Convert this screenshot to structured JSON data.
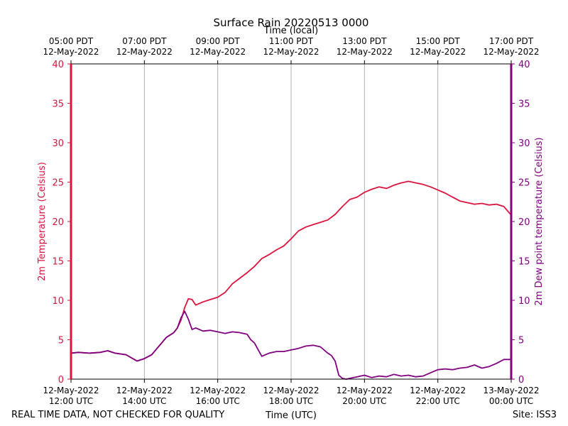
{
  "chart_data": {
    "type": "line",
    "title": "Surface Rain 20220513 0000",
    "xlabel_bottom": "Time (UTC)",
    "xlabel_top": "Time (local)",
    "ylabel_left": "2m Temperature (Celsius)",
    "ylabel_right": "2m Dew point temperature (Celsius)",
    "xlim_hours": [
      12,
      24
    ],
    "ylim": [
      0,
      40
    ],
    "yticks": [
      0,
      5,
      10,
      15,
      20,
      25,
      30,
      35,
      40
    ],
    "grid_vertical": true,
    "x_ticks": [
      {
        "hour": 12,
        "utc_date": "12-May-2022",
        "utc_time": "12:00 UTC",
        "local_time": "05:00 PDT",
        "local_date": "12-May-2022"
      },
      {
        "hour": 14,
        "utc_date": "12-May-2022",
        "utc_time": "14:00 UTC",
        "local_time": "07:00 PDT",
        "local_date": "12-May-2022"
      },
      {
        "hour": 16,
        "utc_date": "12-May-2022",
        "utc_time": "16:00 UTC",
        "local_time": "09:00 PDT",
        "local_date": "12-May-2022"
      },
      {
        "hour": 18,
        "utc_date": "12-May-2022",
        "utc_time": "18:00 UTC",
        "local_time": "11:00 PDT",
        "local_date": "12-May-2022"
      },
      {
        "hour": 20,
        "utc_date": "12-May-2022",
        "utc_time": "20:00 UTC",
        "local_time": "13:00 PDT",
        "local_date": "12-May-2022"
      },
      {
        "hour": 22,
        "utc_date": "12-May-2022",
        "utc_time": "22:00 UTC",
        "local_time": "15:00 PDT",
        "local_date": "12-May-2022"
      },
      {
        "hour": 24,
        "utc_date": "13-May-2022",
        "utc_time": "00:00 UTC",
        "local_time": "17:00 PDT",
        "local_date": "12-May-2022"
      }
    ],
    "series": [
      {
        "name": "2m Temperature",
        "color": "#dc143c",
        "x": [
          12.0,
          12.2,
          12.5,
          12.8,
          13.0,
          13.2,
          13.5,
          13.8,
          14.0,
          14.2,
          14.4,
          14.6,
          14.8,
          14.9,
          15.0,
          15.1,
          15.2,
          15.3,
          15.4,
          15.6,
          15.8,
          16.0,
          16.2,
          16.4,
          16.6,
          16.8,
          17.0,
          17.2,
          17.4,
          17.6,
          17.8,
          18.0,
          18.2,
          18.4,
          18.6,
          18.8,
          19.0,
          19.2,
          19.4,
          19.6,
          19.8,
          20.0,
          20.2,
          20.4,
          20.6,
          20.8,
          21.0,
          21.2,
          21.4,
          21.6,
          21.8,
          22.0,
          22.2,
          22.4,
          22.6,
          22.8,
          23.0,
          23.2,
          23.4,
          23.6,
          23.8,
          24.0
        ],
        "values": [
          3.3,
          3.4,
          3.3,
          3.4,
          3.6,
          3.3,
          3.1,
          2.3,
          2.6,
          3.1,
          4.2,
          5.3,
          5.9,
          6.5,
          7.5,
          9.1,
          10.2,
          10.1,
          9.4,
          9.8,
          10.1,
          10.4,
          11.0,
          12.1,
          12.8,
          13.5,
          14.3,
          15.3,
          15.8,
          16.4,
          16.9,
          17.8,
          18.8,
          19.3,
          19.6,
          19.9,
          20.2,
          20.9,
          21.9,
          22.8,
          23.1,
          23.7,
          24.1,
          24.4,
          24.2,
          24.6,
          24.9,
          25.1,
          24.9,
          24.7,
          24.4,
          24.0,
          23.6,
          23.1,
          22.6,
          22.4,
          22.2,
          22.3,
          22.1,
          22.2,
          21.9,
          20.8
        ]
      },
      {
        "name": "2m Dew point temperature",
        "color": "#800080",
        "x": [
          12.0,
          12.2,
          12.5,
          12.8,
          13.0,
          13.2,
          13.5,
          13.8,
          14.0,
          14.2,
          14.4,
          14.6,
          14.8,
          14.9,
          15.0,
          15.1,
          15.2,
          15.3,
          15.4,
          15.6,
          15.8,
          16.0,
          16.2,
          16.4,
          16.6,
          16.8,
          16.9,
          17.0,
          17.2,
          17.4,
          17.6,
          17.8,
          18.0,
          18.2,
          18.4,
          18.6,
          18.8,
          19.0,
          19.1,
          19.2,
          19.3,
          19.4,
          19.5,
          19.6,
          19.8,
          20.0,
          20.2,
          20.4,
          20.6,
          20.8,
          21.0,
          21.2,
          21.4,
          21.6,
          21.8,
          22.0,
          22.2,
          22.4,
          22.6,
          22.8,
          23.0,
          23.2,
          23.4,
          23.6,
          23.8,
          24.0
        ],
        "values": [
          3.3,
          3.4,
          3.3,
          3.4,
          3.6,
          3.3,
          3.1,
          2.3,
          2.6,
          3.1,
          4.2,
          5.3,
          5.9,
          6.5,
          7.8,
          8.6,
          7.6,
          6.3,
          6.5,
          6.1,
          6.2,
          6.0,
          5.8,
          6.0,
          5.9,
          5.7,
          5.0,
          4.6,
          2.9,
          3.3,
          3.5,
          3.5,
          3.7,
          3.9,
          4.2,
          4.3,
          4.1,
          3.3,
          3.0,
          2.3,
          0.5,
          0.1,
          0.0,
          0.1,
          0.3,
          0.5,
          0.2,
          0.4,
          0.3,
          0.6,
          0.4,
          0.5,
          0.3,
          0.4,
          0.8,
          1.2,
          1.3,
          1.2,
          1.4,
          1.5,
          1.8,
          1.4,
          1.6,
          2.0,
          2.5,
          2.5
        ]
      }
    ]
  },
  "footer": {
    "disclaimer": "REAL TIME DATA, NOT CHECKED FOR QUALITY",
    "site": "Site: ISS3"
  }
}
